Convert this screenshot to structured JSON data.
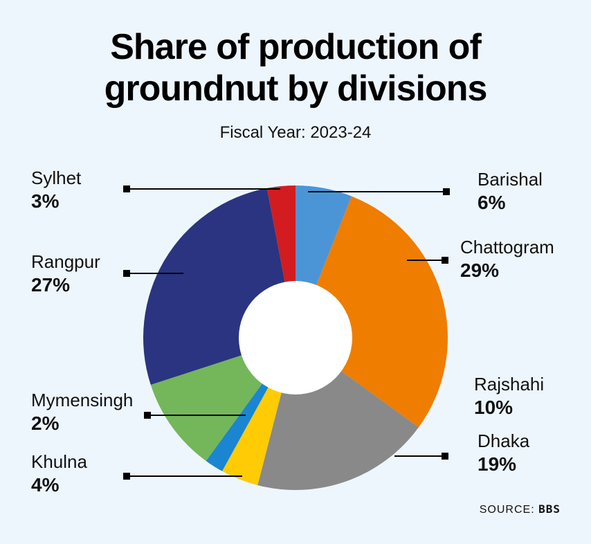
{
  "chart_data": {
    "type": "donut",
    "title": "Share of production of groundnut by divisions",
    "subtitle": "Fiscal Year: 2023-24",
    "categories": [
      "Barishal",
      "Chattogram",
      "Dhaka",
      "Khulna",
      "Mymensingh",
      "Rajshahi",
      "Rangpur",
      "Sylhet"
    ],
    "values": [
      6,
      29,
      19,
      4,
      2,
      10,
      27,
      3
    ],
    "value_labels": [
      "6%",
      "29%",
      "19%",
      "4%",
      "2%",
      "10%",
      "27%",
      "3%"
    ],
    "colors": [
      "#4b95d6",
      "#ef7d00",
      "#898989",
      "#ffcb05",
      "#1a85d1",
      "#74b65a",
      "#2b3480",
      "#d21c1f"
    ],
    "source_label": "SOURCE:",
    "source": "BBS"
  }
}
